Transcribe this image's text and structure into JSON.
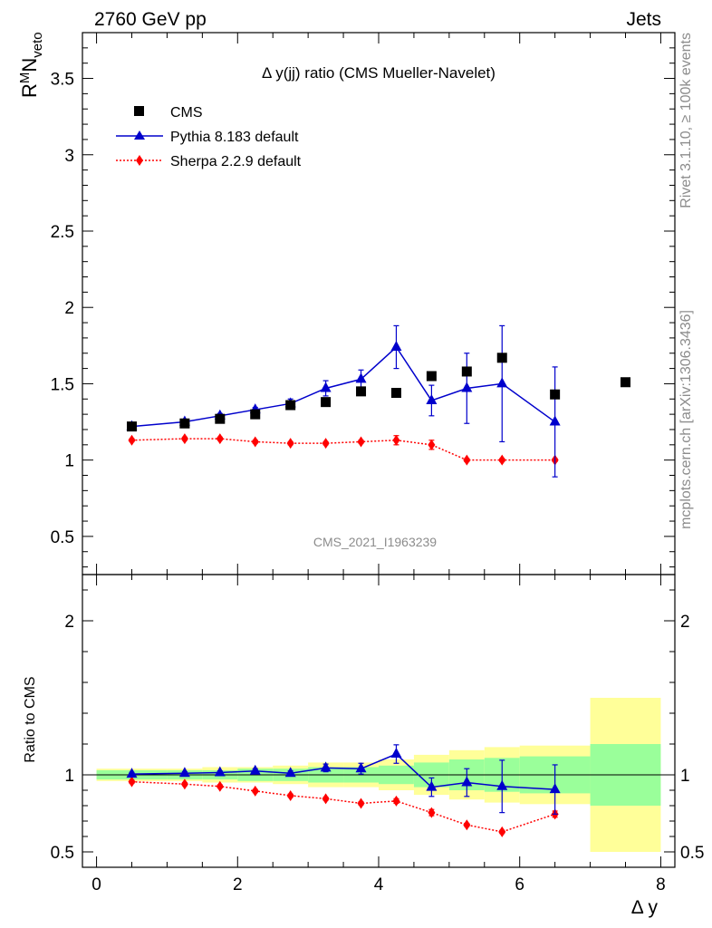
{
  "header": {
    "left": "2760 GeV pp",
    "right": "Jets"
  },
  "side_labels": {
    "rivet": "Rivet 3.1.10, ≥ 100k events",
    "mcplots": "mcplots.cern.ch [arXiv:1306.3436]"
  },
  "top_panel": {
    "title": "Δ y(jj) ratio (CMS Mueller-Navelet)",
    "ylabel_main": "R",
    "ylabel_sup": "M",
    "ylabel_mid": "N",
    "ylabel_sub": "veto",
    "watermark": "CMS_2021_I1963239",
    "ylim": [
      0.25,
      3.8
    ],
    "yticks": [
      "0.5",
      "1",
      "1.5",
      "2",
      "2.5",
      "3",
      "3.5"
    ]
  },
  "legend": {
    "cms": "CMS",
    "pythia": "Pythia 8.183 default",
    "sherpa": "Sherpa 2.2.9 default"
  },
  "bottom_panel": {
    "ylabel": "Ratio to CMS",
    "ylim": [
      0.4,
      2.3
    ],
    "yticks_left": [
      "0.5",
      "1",
      "2"
    ],
    "yticks_right": [
      "0.5",
      "1",
      "2"
    ]
  },
  "xaxis": {
    "label": "Δ y",
    "ticks": [
      "0",
      "2",
      "4",
      "6",
      "8"
    ],
    "xlim": [
      -0.2,
      8.2
    ]
  },
  "chart_data": {
    "type": "scatter",
    "title": "Δ y(jj) ratio (CMS Mueller-Navelet)",
    "xlabel": "Δ y",
    "ylabel": "R^M N_veto",
    "ylim": [
      0.25,
      3.8
    ],
    "x": [
      0.5,
      1.25,
      1.75,
      2.25,
      2.75,
      3.25,
      3.75,
      4.25,
      4.75,
      5.25,
      5.75,
      6.5,
      7.5
    ],
    "bins": [
      [
        0,
        1
      ],
      [
        1,
        1.5
      ],
      [
        1.5,
        2
      ],
      [
        2,
        2.5
      ],
      [
        2.5,
        3
      ],
      [
        3,
        3.5
      ],
      [
        3.5,
        4
      ],
      [
        4,
        4.5
      ],
      [
        4.5,
        5
      ],
      [
        5,
        5.5
      ],
      [
        5.5,
        6
      ],
      [
        6,
        7
      ],
      [
        7,
        8
      ]
    ],
    "series": [
      {
        "name": "CMS",
        "values": [
          1.22,
          1.24,
          1.27,
          1.3,
          1.36,
          1.38,
          1.45,
          1.44,
          1.55,
          1.58,
          1.67,
          1.43,
          1.51
        ]
      },
      {
        "name": "Pythia 8.183 default",
        "values": [
          1.22,
          1.25,
          1.29,
          1.33,
          1.37,
          1.47,
          1.53,
          1.74,
          1.39,
          1.47,
          1.5,
          1.25,
          null
        ],
        "errors": [
          0.01,
          0.01,
          0.015,
          0.015,
          0.03,
          0.05,
          0.06,
          0.14,
          0.1,
          0.23,
          0.38,
          0.36,
          null
        ]
      },
      {
        "name": "Sherpa 2.2.9 default",
        "values": [
          1.13,
          1.14,
          1.14,
          1.12,
          1.11,
          1.11,
          1.12,
          1.13,
          1.1,
          1.0,
          1.0,
          1.0,
          null
        ],
        "errors": [
          0.01,
          0.01,
          0.01,
          0.01,
          0.01,
          0.01,
          0.01,
          0.03,
          0.03,
          0.01,
          0.01,
          0.01,
          null
        ]
      }
    ],
    "ratio": {
      "ylabel": "Ratio to CMS",
      "pythia": [
        1.005,
        1.01,
        1.015,
        1.025,
        1.01,
        1.045,
        1.04,
        1.135,
        0.92,
        0.95,
        0.925,
        0.905,
        null
      ],
      "pythia_err": [
        0.01,
        0.01,
        0.01,
        0.015,
        0.015,
        0.025,
        0.035,
        0.06,
        0.06,
        0.09,
        0.17,
        0.16,
        null
      ],
      "sherpa": [
        0.955,
        0.94,
        0.925,
        0.895,
        0.865,
        0.845,
        0.815,
        0.83,
        0.755,
        0.675,
        0.63,
        0.745,
        null
      ],
      "sherpa_err": [
        0.01,
        0.01,
        0.01,
        0.01,
        0.01,
        0.01,
        0.01,
        0.015,
        0.02,
        0.01,
        0.01,
        0.02,
        null
      ],
      "band_inner": [
        0.03,
        0.03,
        0.03,
        0.04,
        0.04,
        0.05,
        0.05,
        0.06,
        0.08,
        0.1,
        0.11,
        0.12,
        0.2
      ],
      "band_outer": [
        0.04,
        0.04,
        0.05,
        0.05,
        0.06,
        0.08,
        0.08,
        0.1,
        0.13,
        0.16,
        0.18,
        0.19,
        0.5
      ]
    }
  },
  "colors": {
    "cms": "#000000",
    "pythia": "#0000cc",
    "sherpa": "#ff0000",
    "band_inner": "#9aff9a",
    "band_outer": "#ffff99"
  }
}
